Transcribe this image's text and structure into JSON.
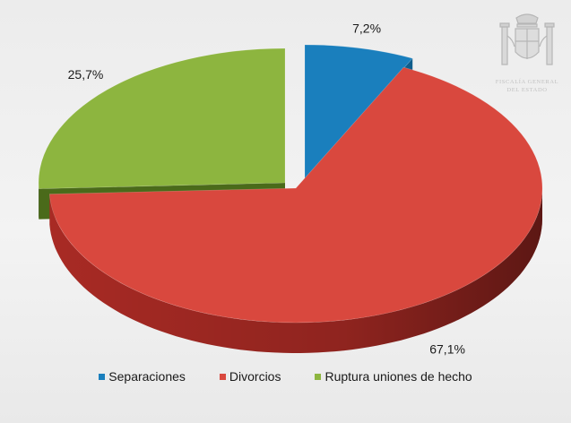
{
  "chart_data": {
    "type": "pie",
    "title": "",
    "categories": [
      "Separaciones",
      "Divorcios",
      "Ruptura uniones de hecho"
    ],
    "values": [
      7.2,
      67.1,
      25.7
    ],
    "labels": [
      "7,2%",
      "67,1%",
      "25,7%"
    ],
    "colors": [
      "#1a7fbd",
      "#d9483e",
      "#8db53f"
    ],
    "side_colors": [
      "#0f5d8c",
      "#a82a24",
      "#4a6a1a"
    ],
    "legend_position": "bottom",
    "exploded": [
      "Separaciones",
      "Ruptura uniones de hecho"
    ],
    "style": "3d"
  },
  "emblem": {
    "line1": "FISCALÍA GENERAL",
    "line2": "DEL ESTADO"
  }
}
